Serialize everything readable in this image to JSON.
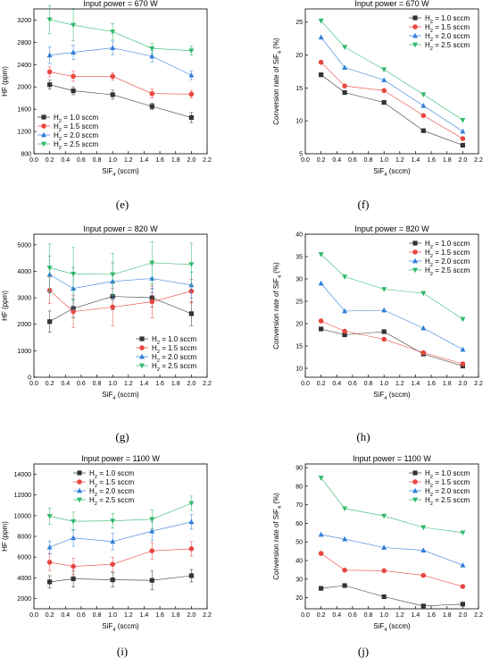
{
  "colors": {
    "s1": "#333333",
    "s2": "#e8473f",
    "s3": "#2f7ed8",
    "s4": "#2fb86b"
  },
  "chart_data": [
    {
      "id": "e",
      "panel_label": "(e)",
      "type": "line",
      "title": "Input power = 670 W",
      "xlabel": "SiF4 (sccm)",
      "ylabel": "HF (ppm)",
      "xlim": [
        0.0,
        2.2
      ],
      "xticks": [
        0.0,
        0.2,
        0.4,
        0.6,
        0.8,
        1.0,
        1.2,
        1.4,
        1.6,
        1.8,
        2.0,
        2.2
      ],
      "ylim": [
        800,
        3400
      ],
      "yticks": [
        800,
        1200,
        1600,
        2000,
        2400,
        2800,
        3200
      ],
      "legend": "bottom-left",
      "x": [
        0.2,
        0.5,
        1.0,
        1.5,
        2.0
      ],
      "series": [
        {
          "name": "H2 = 1.0 sccm",
          "values": [
            2040,
            1930,
            1860,
            1650,
            1450
          ],
          "err": [
            80,
            70,
            80,
            60,
            90
          ]
        },
        {
          "name": "H2 = 1.5 sccm",
          "values": [
            2270,
            2190,
            2190,
            1880,
            1870
          ],
          "err": [
            90,
            90,
            70,
            80,
            70
          ]
        },
        {
          "name": "H2 = 2.0 sccm",
          "values": [
            2570,
            2620,
            2700,
            2550,
            2210
          ],
          "err": [
            150,
            130,
            120,
            100,
            80
          ]
        },
        {
          "name": "H2 = 2.5 sccm",
          "values": [
            3210,
            3110,
            2990,
            2690,
            2650
          ],
          "err": [
            250,
            280,
            150,
            90,
            80
          ]
        }
      ]
    },
    {
      "id": "f",
      "panel_label": "(f)",
      "type": "line",
      "title": "Input power = 670 W",
      "xlabel": "SiF4 (sccm)",
      "ylabel": "Conversion rate of SiF4 (%)",
      "xlim": [
        0.0,
        2.2
      ],
      "xticks": [
        0.0,
        0.2,
        0.4,
        0.6,
        0.8,
        1.0,
        1.2,
        1.4,
        1.6,
        1.8,
        2.0,
        2.2
      ],
      "ylim": [
        5,
        27
      ],
      "yticks": [
        5,
        10,
        15,
        20,
        25
      ],
      "legend": "top-right",
      "x": [
        0.2,
        0.5,
        1.0,
        1.5,
        2.0
      ],
      "series": [
        {
          "name": "H2 = 1.0 sccm",
          "values": [
            17.0,
            14.3,
            12.8,
            8.5,
            6.3
          ]
        },
        {
          "name": "H2 = 1.5 sccm",
          "values": [
            18.9,
            15.3,
            14.6,
            10.8,
            7.3
          ]
        },
        {
          "name": "H2 = 2.0 sccm",
          "values": [
            22.7,
            18.1,
            16.2,
            12.3,
            8.4
          ]
        },
        {
          "name": "H2 = 2.5 sccm",
          "values": [
            25.2,
            21.2,
            17.8,
            14.0,
            10.1
          ]
        }
      ]
    },
    {
      "id": "g",
      "panel_label": "(g)",
      "type": "line",
      "title": "Input power = 820 W",
      "xlabel": "SiF4 (sccm)",
      "ylabel": "HF (ppm)",
      "xlim": [
        0.0,
        2.2
      ],
      "xticks": [
        0.0,
        0.2,
        0.4,
        0.6,
        0.8,
        1.0,
        1.2,
        1.4,
        1.6,
        1.8,
        2.0,
        2.2
      ],
      "ylim": [
        0,
        5400
      ],
      "yticks": [
        0,
        1000,
        2000,
        3000,
        4000,
        5000
      ],
      "legend": "bottom-right",
      "x": [
        0.2,
        0.5,
        1.0,
        1.5,
        2.0
      ],
      "series": [
        {
          "name": "H2 = 1.0 sccm",
          "values": [
            2100,
            2600,
            3050,
            3000,
            2400
          ],
          "err": [
            400,
            350,
            500,
            350,
            450
          ]
        },
        {
          "name": "H2 = 1.5 sccm",
          "values": [
            3280,
            2480,
            2650,
            2850,
            3250
          ],
          "err": [
            500,
            600,
            700,
            600,
            450
          ]
        },
        {
          "name": "H2 = 2.0 sccm",
          "values": [
            3880,
            3350,
            3620,
            3730,
            3480
          ],
          "err": [
            700,
            800,
            700,
            550,
            500
          ]
        },
        {
          "name": "H2 = 2.5 sccm",
          "values": [
            4130,
            3900,
            3880,
            4320,
            4260
          ],
          "err": [
            900,
            1000,
            800,
            800,
            800
          ]
        }
      ]
    },
    {
      "id": "h",
      "panel_label": "(h)",
      "type": "line",
      "title": "Input power = 820 W",
      "xlabel": "SiF4 (sccm)",
      "ylabel": "Conversion rate of SiF4 (%)",
      "xlim": [
        0.0,
        2.2
      ],
      "xticks": [
        0.0,
        0.2,
        0.4,
        0.6,
        0.8,
        1.0,
        1.2,
        1.4,
        1.6,
        1.8,
        2.0,
        2.2
      ],
      "ylim": [
        8,
        40
      ],
      "yticks": [
        10,
        15,
        20,
        25,
        30,
        35,
        40
      ],
      "legend": "top-right",
      "x": [
        0.2,
        0.5,
        1.0,
        1.5,
        2.0
      ],
      "series": [
        {
          "name": "H2 = 1.0 sccm",
          "values": [
            18.8,
            17.5,
            18.2,
            13.2,
            10.5
          ]
        },
        {
          "name": "H2 = 1.5 sccm",
          "values": [
            20.6,
            18.3,
            16.5,
            13.5,
            11.0
          ]
        },
        {
          "name": "H2 = 2.0 sccm",
          "values": [
            29.0,
            22.8,
            23.0,
            19.0,
            14.2
          ]
        },
        {
          "name": "H2 = 2.5 sccm",
          "values": [
            35.5,
            30.5,
            27.7,
            26.8,
            21.0
          ]
        }
      ]
    },
    {
      "id": "i",
      "panel_label": "(i)",
      "type": "line",
      "title": "Input power = 1100 W",
      "xlabel": "SiF4 (sccm)",
      "ylabel": "HF (ppm)",
      "xlim": [
        0.0,
        2.2
      ],
      "xticks": [
        0.0,
        0.2,
        0.4,
        0.6,
        0.8,
        1.0,
        1.2,
        1.4,
        1.6,
        1.8,
        2.0,
        2.2
      ],
      "ylim": [
        1000,
        15000
      ],
      "yticks": [
        2000,
        4000,
        6000,
        8000,
        10000,
        12000,
        14000
      ],
      "legend": "top-left",
      "x": [
        0.2,
        0.5,
        1.0,
        1.5,
        2.0
      ],
      "series": [
        {
          "name": "H2 = 1.0 sccm",
          "values": [
            3600,
            3900,
            3800,
            3750,
            4200
          ],
          "err": [
            600,
            800,
            700,
            900,
            600
          ]
        },
        {
          "name": "H2 = 1.5 sccm",
          "values": [
            5500,
            5100,
            5300,
            6600,
            6800
          ],
          "err": [
            800,
            800,
            700,
            800,
            700
          ]
        },
        {
          "name": "H2 = 2.0 sccm",
          "values": [
            6950,
            7850,
            7500,
            8500,
            9400
          ],
          "err": [
            600,
            800,
            800,
            900,
            700
          ]
        },
        {
          "name": "H2 = 2.5 sccm",
          "values": [
            9950,
            9450,
            9500,
            9650,
            11200
          ],
          "err": [
            800,
            900,
            700,
            900,
            700
          ]
        }
      ]
    },
    {
      "id": "j",
      "panel_label": "(j)",
      "type": "line",
      "title": "Input power = 1100 W",
      "xlabel": "SiF4 (sccm)",
      "ylabel": "Conversion rate of SiF4 (%)",
      "xlim": [
        0.0,
        2.2
      ],
      "xticks": [
        0.0,
        0.2,
        0.4,
        0.6,
        0.8,
        1.0,
        1.2,
        1.4,
        1.6,
        1.8,
        2.0,
        2.2
      ],
      "ylim": [
        14,
        92
      ],
      "yticks": [
        20,
        30,
        40,
        50,
        60,
        70,
        80,
        90
      ],
      "legend": "top-right",
      "x": [
        0.2,
        0.5,
        1.0,
        1.5,
        2.0
      ],
      "series": [
        {
          "name": "H2 = 1.0 sccm",
          "values": [
            25.0,
            26.5,
            20.5,
            15.5,
            16.5
          ]
        },
        {
          "name": "H2 = 1.5 sccm",
          "values": [
            43.8,
            34.8,
            34.5,
            32.0,
            26.0
          ]
        },
        {
          "name": "H2 = 2.0 sccm",
          "values": [
            54.0,
            51.5,
            47.0,
            45.5,
            37.5
          ]
        },
        {
          "name": "H2 = 2.5 sccm",
          "values": [
            84.5,
            68.0,
            64.0,
            57.8,
            55.0
          ]
        }
      ]
    }
  ]
}
